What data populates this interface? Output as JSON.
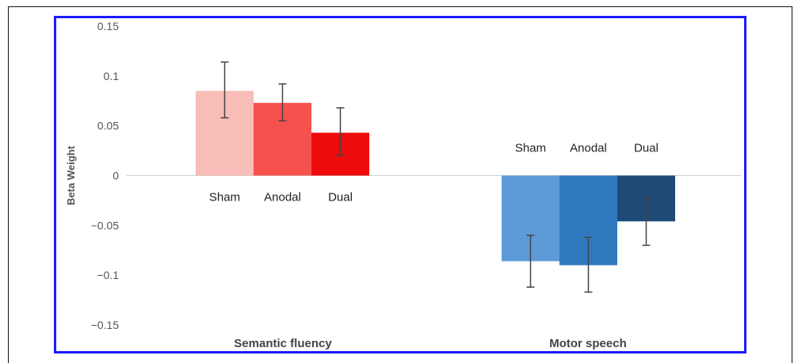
{
  "chart_data": {
    "type": "bar",
    "ylabel": "Beta Weight",
    "ylim": [
      -0.15,
      0.15
    ],
    "yticks": [
      0.15,
      0.1,
      0.05,
      0,
      -0.05,
      -0.1,
      -0.15
    ],
    "ytick_labels": [
      "0.15",
      "0.1",
      "0.05",
      "0",
      "−0.05",
      "−0.1",
      "−0.15"
    ],
    "grid": false,
    "categories": [
      "Semantic fluency",
      "Motor speech"
    ],
    "groups": [
      {
        "category": "Semantic fluency",
        "bars": [
          {
            "label": "Sham",
            "value": 0.085,
            "err_low": 0.058,
            "err_high": 0.114,
            "color": "#f7bdb6"
          },
          {
            "label": "Anodal",
            "value": 0.073,
            "err_low": 0.055,
            "err_high": 0.092,
            "color": "#f5524d"
          },
          {
            "label": "Dual",
            "value": 0.043,
            "err_low": 0.02,
            "err_high": 0.068,
            "color": "#ee0b0b"
          }
        ]
      },
      {
        "category": "Motor speech",
        "bars": [
          {
            "label": "Sham",
            "value": -0.086,
            "err_low": -0.112,
            "err_high": -0.06,
            "color": "#5d9bd8"
          },
          {
            "label": "Anodal",
            "value": -0.09,
            "err_low": -0.117,
            "err_high": -0.062,
            "color": "#3179bf"
          },
          {
            "label": "Dual",
            "value": -0.046,
            "err_low": -0.07,
            "err_high": -0.022,
            "color": "#1f4a78"
          }
        ]
      }
    ]
  }
}
